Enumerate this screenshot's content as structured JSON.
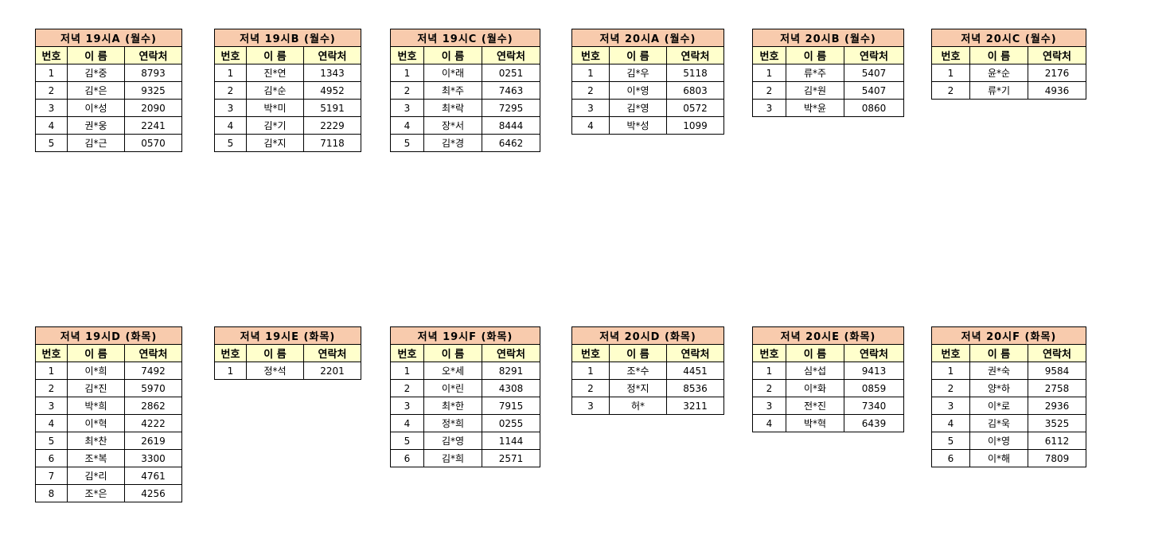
{
  "headers": {
    "no": "번호",
    "name": "이 름",
    "contact": "연락처"
  },
  "groups": [
    {
      "title": "저녁 19시A (월수)",
      "rows": [
        [
          "1",
          "김*중",
          "8793"
        ],
        [
          "2",
          "김*은",
          "9325"
        ],
        [
          "3",
          "이*성",
          "2090"
        ],
        [
          "4",
          "권*웅",
          "2241"
        ],
        [
          "5",
          "김*근",
          "0570"
        ]
      ]
    },
    {
      "title": "저녁 19시B (월수)",
      "rows": [
        [
          "1",
          "진*연",
          "1343"
        ],
        [
          "2",
          "김*순",
          "4952"
        ],
        [
          "3",
          "박*미",
          "5191"
        ],
        [
          "4",
          "김*기",
          "2229"
        ],
        [
          "5",
          "김*지",
          "7118"
        ]
      ]
    },
    {
      "title": "저녁 19시C (월수)",
      "rows": [
        [
          "1",
          "이*래",
          "0251"
        ],
        [
          "2",
          "최*주",
          "7463"
        ],
        [
          "3",
          "최*락",
          "7295"
        ],
        [
          "4",
          "장*서",
          "8444"
        ],
        [
          "5",
          "김*경",
          "6462"
        ]
      ]
    },
    {
      "title": "저녁 20시A (월수)",
      "rows": [
        [
          "1",
          "김*우",
          "5118"
        ],
        [
          "2",
          "이*영",
          "6803"
        ],
        [
          "3",
          "김*영",
          "0572"
        ],
        [
          "4",
          "박*성",
          "1099"
        ]
      ]
    },
    {
      "title": "저녁 20시B (월수)",
      "rows": [
        [
          "1",
          "류*주",
          "5407"
        ],
        [
          "2",
          "김*원",
          "5407"
        ],
        [
          "3",
          "박*윤",
          "0860"
        ]
      ]
    },
    {
      "title": "저녁 20시C (월수)",
      "rows": [
        [
          "1",
          "윤*순",
          "2176"
        ],
        [
          "2",
          "류*기",
          "4936"
        ]
      ]
    },
    {
      "title": "저녁 19시D (화목)",
      "rows": [
        [
          "1",
          "이*희",
          "7492"
        ],
        [
          "2",
          "김*진",
          "5970"
        ],
        [
          "3",
          "박*희",
          "2862"
        ],
        [
          "4",
          "이*혁",
          "4222"
        ],
        [
          "5",
          "최*찬",
          "2619"
        ],
        [
          "6",
          "조*복",
          "3300"
        ],
        [
          "7",
          "김*리",
          "4761"
        ],
        [
          "8",
          "조*은",
          "4256"
        ]
      ]
    },
    {
      "title": "저녁 19시E (화목)",
      "rows": [
        [
          "1",
          "정*석",
          "2201"
        ]
      ]
    },
    {
      "title": "저녁 19시F (화목)",
      "rows": [
        [
          "1",
          "오*세",
          "8291"
        ],
        [
          "2",
          "이*린",
          "4308"
        ],
        [
          "3",
          "최*한",
          "7915"
        ],
        [
          "4",
          "정*희",
          "0255"
        ],
        [
          "5",
          "김*영",
          "1144"
        ],
        [
          "6",
          "김*희",
          "2571"
        ]
      ]
    },
    {
      "title": "저녁 20시D (화목)",
      "rows": [
        [
          "1",
          "조*수",
          "4451"
        ],
        [
          "2",
          "정*지",
          "8536"
        ],
        [
          "3",
          "허*",
          "3211"
        ]
      ]
    },
    {
      "title": "저녁 20시E (화목)",
      "rows": [
        [
          "1",
          "심*섭",
          "9413"
        ],
        [
          "2",
          "이*화",
          "0859"
        ],
        [
          "3",
          "전*진",
          "7340"
        ],
        [
          "4",
          "박*혁",
          "6439"
        ]
      ]
    },
    {
      "title": "저녁 20시F (화목)",
      "rows": [
        [
          "1",
          "권*숙",
          "9584"
        ],
        [
          "2",
          "양*하",
          "2758"
        ],
        [
          "3",
          "이*로",
          "2936"
        ],
        [
          "4",
          "김*욱",
          "3525"
        ],
        [
          "5",
          "이*영",
          "6112"
        ],
        [
          "6",
          "이*해",
          "7809"
        ]
      ]
    }
  ]
}
